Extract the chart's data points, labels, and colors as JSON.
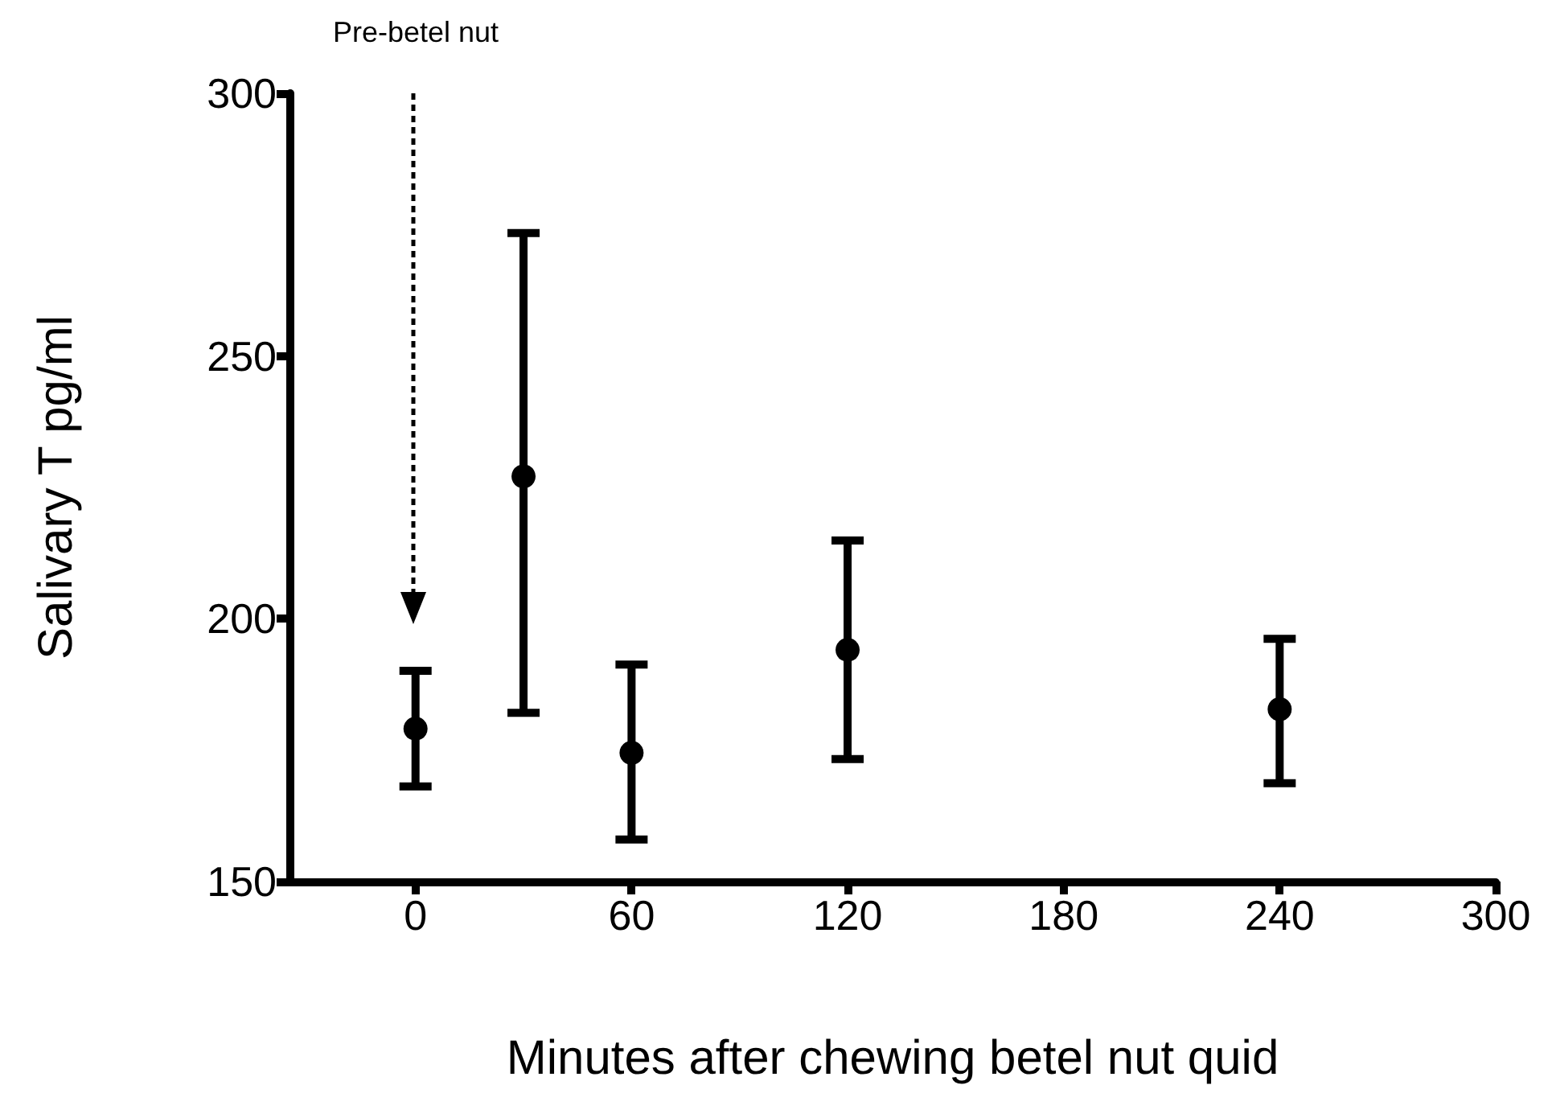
{
  "chart_data": {
    "type": "scatter",
    "xlabel": "Minutes after chewing betel nut quid",
    "ylabel": "Salivary T pg/ml",
    "x": [
      0,
      30,
      60,
      120,
      240
    ],
    "values": [
      179.1,
      227.1,
      174.5,
      194.1,
      182.8
    ],
    "errors": [
      [
        168.1,
        190.1
      ],
      [
        182.1,
        273.4
      ],
      [
        158,
        191.3
      ],
      [
        173.3,
        214.9
      ],
      [
        168.7,
        196.2
      ]
    ],
    "color": "#000000",
    "marker": "circle",
    "grid": false,
    "xlim": [
      -35,
      300
    ],
    "xticks": [
      0,
      60,
      120,
      180,
      240,
      300
    ],
    "ylim": [
      150,
      300
    ],
    "yticks": [
      150,
      200,
      250,
      300
    ],
    "annotations": [
      "Pre-betel nut"
    ]
  }
}
